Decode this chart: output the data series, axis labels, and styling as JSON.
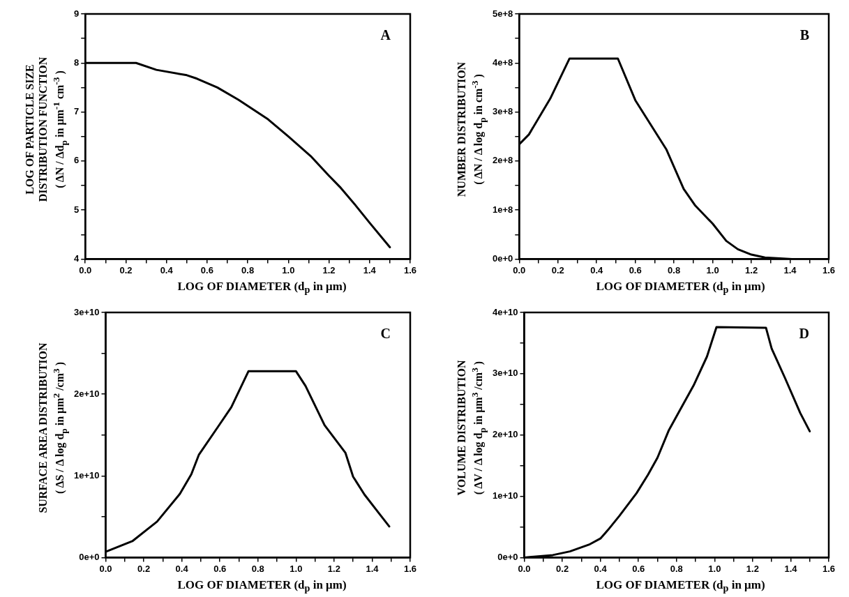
{
  "chart_data": [
    {
      "type": "line",
      "annotations": [
        "A"
      ],
      "xlabel": "LOG OF DIAMETER (d$_{p}$ in μm)",
      "ylabel": "LOG OF PARTICLE SIZE\nDISTRIBUTION FUNCTION\n( ΔN / Δd$_{p}$ in μm$^{-1}$ cm$^{-3}$ )",
      "marker": "none",
      "xlim": [
        0,
        1.6
      ],
      "ylim": [
        4,
        9
      ],
      "xticks": [
        {
          "value": 0,
          "label": "0.0"
        },
        {
          "value": 0.1,
          "label": null
        },
        {
          "value": 0.2,
          "label": "0.2"
        },
        {
          "value": 0.3,
          "label": null
        },
        {
          "value": 0.4,
          "label": "0.4"
        },
        {
          "value": 0.5,
          "label": null
        },
        {
          "value": 0.6,
          "label": "0.6"
        },
        {
          "value": 0.7,
          "label": null
        },
        {
          "value": 0.8,
          "label": "0.8"
        },
        {
          "value": 0.9,
          "label": null
        },
        {
          "value": 1,
          "label": "1.0"
        },
        {
          "value": 1.1,
          "label": null
        },
        {
          "value": 1.2,
          "label": "1.2"
        },
        {
          "value": 1.3,
          "label": null
        },
        {
          "value": 1.4,
          "label": "1.4"
        },
        {
          "value": 1.5,
          "label": null
        },
        {
          "value": 1.6,
          "label": "1.6"
        }
      ],
      "yticks": [
        4,
        {
          "value": 4.5,
          "label": null
        },
        5,
        {
          "value": 5.5,
          "label": null
        },
        6,
        {
          "value": 6.5,
          "label": null
        },
        7,
        {
          "value": 7.5,
          "label": null
        },
        8,
        {
          "value": 8.5,
          "label": null
        },
        9
      ],
      "series": [
        {
          "color": "#000000",
          "x": [
            0,
            0.25,
            0.35,
            0.5,
            0.55,
            0.65,
            0.754,
            0.9,
            1.0,
            1.11,
            1.2,
            1.254,
            1.33,
            1.4,
            1.5
          ],
          "values": [
            8.0,
            8.0,
            7.86,
            7.75,
            7.68,
            7.5,
            7.25,
            6.85,
            6.5,
            6.1,
            5.7,
            5.47,
            5.1,
            4.74,
            4.24
          ]
        }
      ]
    },
    {
      "type": "line",
      "annotations": [
        "B"
      ],
      "xlabel": "LOG OF DIAMETER (d$_{p}$ in μm)",
      "ylabel": "NUMBER DISTRIBUTION\n( ΔN / Δ log d$_{p}$ in cm$^{-3}$ )",
      "marker": "none",
      "xlim": [
        0,
        1.6
      ],
      "ylim": [
        0,
        500000000
      ],
      "xticks": [
        {
          "value": 0,
          "label": "0.0"
        },
        {
          "value": 0.1,
          "label": null
        },
        {
          "value": 0.2,
          "label": "0.2"
        },
        {
          "value": 0.3,
          "label": null
        },
        {
          "value": 0.4,
          "label": "0.4"
        },
        {
          "value": 0.5,
          "label": null
        },
        {
          "value": 0.6,
          "label": "0.6"
        },
        {
          "value": 0.7,
          "label": null
        },
        {
          "value": 0.8,
          "label": "0.8"
        },
        {
          "value": 0.9,
          "label": null
        },
        {
          "value": 1,
          "label": "1.0"
        },
        {
          "value": 1.1,
          "label": null
        },
        {
          "value": 1.2,
          "label": "1.2"
        },
        {
          "value": 1.3,
          "label": null
        },
        {
          "value": 1.4,
          "label": "1.4"
        },
        {
          "value": 1.5,
          "label": null
        },
        {
          "value": 1.6,
          "label": "1.6"
        }
      ],
      "yticks": [
        {
          "value": 0,
          "label": "0e+0"
        },
        {
          "value": 50000000,
          "label": null
        },
        {
          "value": 100000000,
          "label": "1e+8"
        },
        {
          "value": 150000000,
          "label": null
        },
        {
          "value": 200000000,
          "label": "2e+8"
        },
        {
          "value": 250000000,
          "label": null
        },
        {
          "value": 300000000,
          "label": "3e+8"
        },
        {
          "value": 350000000,
          "label": null
        },
        {
          "value": 400000000,
          "label": "4e+8"
        },
        {
          "value": 450000000,
          "label": null
        },
        {
          "value": 500000000,
          "label": "5e+8"
        }
      ],
      "series": [
        {
          "color": "#000000",
          "x": [
            0,
            0.05,
            0.16,
            0.26,
            0.51,
            0.6,
            0.76,
            0.85,
            0.91,
            1.0,
            1.07,
            1.13,
            1.2,
            1.27,
            1.41,
            1.5
          ],
          "values": [
            234000000,
            254000000,
            327000000,
            409000000,
            409000000,
            324000000,
            224000000,
            143000000,
            109000000,
            72000000,
            37000000,
            20000000,
            9000000,
            3000000,
            0,
            0
          ]
        }
      ]
    },
    {
      "type": "line",
      "annotations": [
        "C"
      ],
      "xlabel": "LOG OF DIAMETER (d$_{p}$ in μm)",
      "ylabel": "SURFACE AREA DISTRIBUTION\n( ΔS / Δ log d$_{p}$ in μm$^{2}$ /cm$^{3}$ )",
      "marker": "none",
      "xlim": [
        0,
        1.6
      ],
      "ylim": [
        0,
        30000000000
      ],
      "xticks": [
        {
          "value": 0,
          "label": "0.0"
        },
        {
          "value": 0.1,
          "label": null
        },
        {
          "value": 0.2,
          "label": "0.2"
        },
        {
          "value": 0.3,
          "label": null
        },
        {
          "value": 0.4,
          "label": "0.4"
        },
        {
          "value": 0.5,
          "label": null
        },
        {
          "value": 0.6,
          "label": "0.6"
        },
        {
          "value": 0.7,
          "label": null
        },
        {
          "value": 0.8,
          "label": "0.8"
        },
        {
          "value": 0.9,
          "label": null
        },
        {
          "value": 1,
          "label": "1.0"
        },
        {
          "value": 1.1,
          "label": null
        },
        {
          "value": 1.2,
          "label": "1.2"
        },
        {
          "value": 1.3,
          "label": null
        },
        {
          "value": 1.4,
          "label": "1.4"
        },
        {
          "value": 1.5,
          "label": null
        },
        {
          "value": 1.6,
          "label": "1.6"
        }
      ],
      "yticks": [
        {
          "value": 0,
          "label": "0e+0"
        },
        {
          "value": 5000000000,
          "label": null
        },
        {
          "value": 10000000000,
          "label": "1e+10"
        },
        {
          "value": 15000000000,
          "label": null
        },
        {
          "value": 20000000000,
          "label": "2e+10"
        },
        {
          "value": 25000000000,
          "label": null
        },
        {
          "value": 30000000000,
          "label": "3e+10"
        }
      ],
      "series": [
        {
          "color": "#000000",
          "x": [
            0,
            0.14,
            0.27,
            0.39,
            0.45,
            0.49,
            0.59,
            0.66,
            0.75,
            1.0,
            1.05,
            1.15,
            1.26,
            1.3,
            1.36,
            1.44,
            1.49
          ],
          "values": [
            700000000,
            2000000000,
            4400000000,
            7800000000,
            10200000000,
            12600000000,
            16000000000,
            18400000000,
            22800000000,
            22800000000,
            21000000000,
            16200000000,
            12800000000,
            9900000000,
            7700000000,
            5300000000,
            3800000000
          ]
        }
      ]
    },
    {
      "type": "line",
      "annotations": [
        "D"
      ],
      "xlabel": "LOG OF DIAMETER (d$_{p}$ in μm)",
      "ylabel": "VOLUME DISTRIBUTION\n( ΔV / Δ log d$_{p}$ in μm$^{3}$ /cm$^{3}$ )",
      "marker": "none",
      "xlim": [
        0,
        1.6
      ],
      "ylim": [
        0,
        40000000000
      ],
      "xticks": [
        {
          "value": 0,
          "label": "0.0"
        },
        {
          "value": 0.1,
          "label": null
        },
        {
          "value": 0.2,
          "label": "0.2"
        },
        {
          "value": 0.3,
          "label": null
        },
        {
          "value": 0.4,
          "label": "0.4"
        },
        {
          "value": 0.5,
          "label": null
        },
        {
          "value": 0.6,
          "label": "0.6"
        },
        {
          "value": 0.7,
          "label": null
        },
        {
          "value": 0.8,
          "label": "0.8"
        },
        {
          "value": 0.9,
          "label": null
        },
        {
          "value": 1,
          "label": "1.0"
        },
        {
          "value": 1.1,
          "label": null
        },
        {
          "value": 1.2,
          "label": "1.2"
        },
        {
          "value": 1.3,
          "label": null
        },
        {
          "value": 1.4,
          "label": "1.4"
        },
        {
          "value": 1.5,
          "label": null
        },
        {
          "value": 1.6,
          "label": "1.6"
        }
      ],
      "yticks": [
        {
          "value": 0,
          "label": "0e+0"
        },
        {
          "value": 5000000000,
          "label": null
        },
        {
          "value": 10000000000,
          "label": "1e+10"
        },
        {
          "value": 15000000000,
          "label": null
        },
        {
          "value": 20000000000,
          "label": "2e+10"
        },
        {
          "value": 25000000000,
          "label": null
        },
        {
          "value": 30000000000,
          "label": "3e+10"
        },
        {
          "value": 35000000000,
          "label": null
        },
        {
          "value": 40000000000,
          "label": "4e+10"
        }
      ],
      "series": [
        {
          "color": "#000000",
          "x": [
            0,
            0.15,
            0.24,
            0.34,
            0.4,
            0.44,
            0.5,
            0.59,
            0.65,
            0.7,
            0.76,
            0.81,
            0.89,
            0.96,
            1.01,
            1.27,
            1.3,
            1.37,
            1.45,
            1.5
          ],
          "values": [
            0,
            400000000,
            1000000000,
            2100000000,
            3100000000,
            4500000000,
            6800000000,
            10500000000,
            13500000000,
            16300000000,
            20800000000,
            23600000000,
            28100000000,
            32800000000,
            37600000000,
            37500000000,
            34100000000,
            29300000000,
            23600000000,
            20600000000
          ]
        }
      ]
    }
  ]
}
